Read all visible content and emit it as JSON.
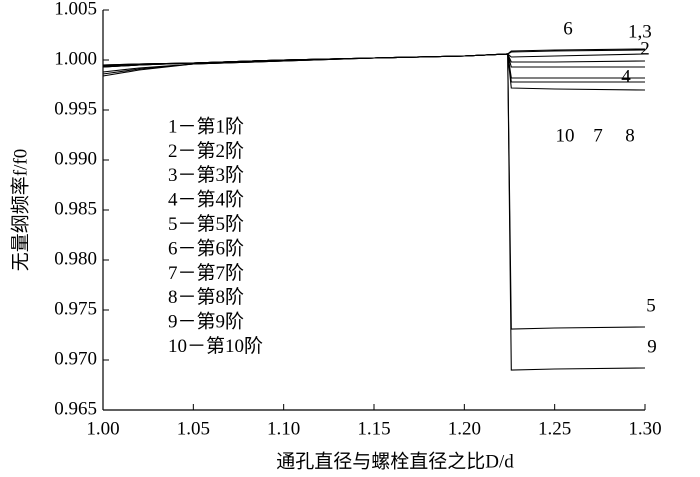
{
  "chart_data": {
    "type": "line",
    "xlabel": "通孔直径与螺栓直径之比D/d",
    "ylabel": "无量纲频率f/f0",
    "x": [
      1.0,
      1.02,
      1.05,
      1.1,
      1.15,
      1.2,
      1.224,
      1.226,
      1.25,
      1.3
    ],
    "series": [
      {
        "name": "1－第1阶",
        "color": "#000000",
        "values": [
          0.9995,
          0.9996,
          0.9997,
          1.0,
          1.0002,
          1.0004,
          1.0006,
          1.0008,
          1.0009,
          1.001
        ]
      },
      {
        "name": "2－第2阶",
        "color": "#000000",
        "values": [
          0.9994,
          0.9996,
          0.9997,
          1.0,
          1.0002,
          1.0004,
          1.0006,
          0.9998,
          0.9998,
          0.9999
        ]
      },
      {
        "name": "3－第3阶",
        "color": "#000000",
        "values": [
          0.9995,
          0.9996,
          0.9997,
          1.0,
          1.0002,
          1.0004,
          1.0006,
          1.0009,
          1.001,
          1.0011
        ]
      },
      {
        "name": "4－第4阶",
        "color": "#000000",
        "values": [
          0.9993,
          0.9995,
          0.9997,
          1.0,
          1.0002,
          1.0004,
          1.0006,
          0.9993,
          0.9993,
          0.9993
        ]
      },
      {
        "name": "5－第5阶",
        "color": "#000000",
        "values": [
          0.9993,
          0.9995,
          0.9997,
          1.0,
          1.0002,
          1.0004,
          1.0006,
          0.9731,
          0.9732,
          0.9733
        ]
      },
      {
        "name": "6－第6阶",
        "color": "#000000",
        "values": [
          0.9994,
          0.9996,
          0.9997,
          1.0,
          1.0002,
          1.0004,
          1.0006,
          1.0003,
          1.0004,
          1.0006
        ]
      },
      {
        "name": "7－第7阶",
        "color": "#000000",
        "values": [
          0.9988,
          0.9992,
          0.9996,
          0.9999,
          1.0002,
          1.0004,
          1.0006,
          0.9982,
          0.9982,
          0.9982
        ]
      },
      {
        "name": "8－第8阶",
        "color": "#000000",
        "values": [
          0.9986,
          0.9991,
          0.9996,
          0.9999,
          1.0002,
          1.0004,
          1.0006,
          0.9978,
          0.9978,
          0.9978
        ]
      },
      {
        "name": "9－第9阶",
        "color": "#000000",
        "values": [
          0.9993,
          0.9995,
          0.9997,
          1.0,
          1.0002,
          1.0004,
          1.0006,
          0.969,
          0.9691,
          0.9692
        ]
      },
      {
        "name": "10－第10阶",
        "color": "#000000",
        "values": [
          0.9984,
          0.999,
          0.9996,
          0.9999,
          1.0002,
          1.0004,
          1.0006,
          0.9972,
          0.9971,
          0.997
        ]
      }
    ],
    "annotations": [
      "6",
      "1,3",
      "2",
      "4",
      "10",
      "7",
      "8",
      "5",
      "9"
    ],
    "xlim": [
      1.0,
      1.3
    ],
    "xticks": [
      {
        "value": 1.0,
        "label": "1.00"
      },
      1.05,
      {
        "value": 1.1,
        "label": "1.10"
      },
      1.15,
      {
        "value": 1.2,
        "label": "1.20"
      },
      1.25,
      {
        "value": 1.3,
        "label": "1.30"
      }
    ],
    "ylim": [
      0.965,
      1.005
    ],
    "yticks": [
      0.965,
      {
        "value": 0.97,
        "label": "0.970"
      },
      0.975,
      {
        "value": 0.98,
        "label": "0.980"
      },
      0.985,
      {
        "value": 0.99,
        "label": "0.990"
      },
      0.995,
      {
        "value": 1.0,
        "label": "1.000"
      },
      1.005
    ],
    "grid": false
  }
}
